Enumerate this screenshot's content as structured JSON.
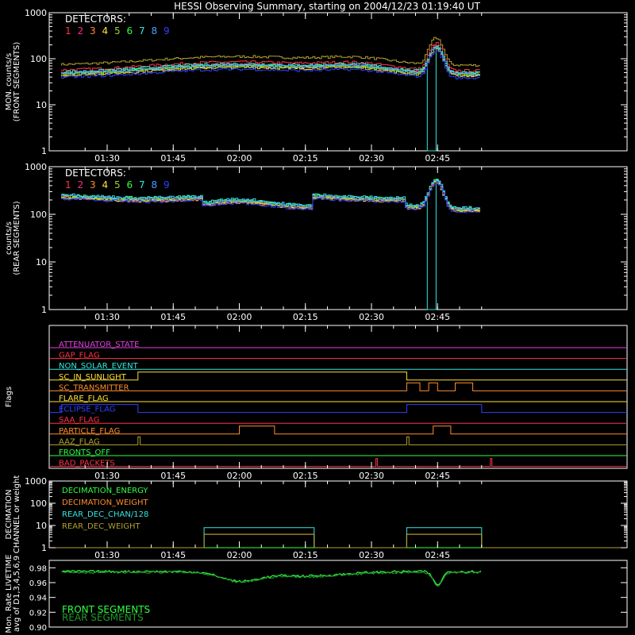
{
  "title": "HESSI Observing Summary, starting on 2004/12/23 01:19:40 UT",
  "time_ticks": [
    "01:30",
    "01:45",
    "02:00",
    "02:15",
    "02:30",
    "02:45"
  ],
  "detectors": {
    "heading": "DETECTORS:",
    "numbers": [
      "1",
      "2",
      "3",
      "4",
      "5",
      "6",
      "7",
      "8",
      "9"
    ],
    "colors": [
      "#ff3344",
      "#ff2a88",
      "#ff8c2a",
      "#ffe030",
      "#9ad030",
      "#30ff40",
      "#30e8e0",
      "#4aa0ff",
      "#3040ff"
    ],
    "extra_color": "#b0a030"
  },
  "chart_data": [
    {
      "type": "line",
      "ylabel": "MON. counts/s",
      "ylabel2": "(FRONT SEGMENTS)",
      "yscale": "log",
      "ylim": [
        1,
        1000
      ],
      "ytick_labels": [
        "1",
        "10",
        "100",
        "1000"
      ],
      "x_range": [
        "01:19:40",
        "02:55:00"
      ],
      "baseline_range": [
        30,
        100
      ],
      "flare_peak_time": "02:45",
      "flare_peak": 300,
      "dropout": [
        "02:43",
        "02:45"
      ]
    },
    {
      "type": "line",
      "ylabel": "counts/s",
      "ylabel2": "(REAR SEGMENTS)",
      "yscale": "log",
      "ylim": [
        1,
        1000
      ],
      "ytick_labels": [
        "1",
        "10",
        "100",
        "1000"
      ],
      "baseline_range": [
        130,
        320
      ],
      "flare_peak_time": "02:45",
      "flare_peak": 450,
      "dropout": [
        "02:43",
        "02:45"
      ]
    },
    {
      "type": "flags",
      "ylabel": "Flags",
      "flags": [
        {
          "name": "ATTENUATOR_STATE",
          "color": "#e040e0"
        },
        {
          "name": "GAP_FLAG",
          "color": "#ff3344"
        },
        {
          "name": "NON_SOLAR_EVENT",
          "color": "#30e8e0"
        },
        {
          "name": "SC_IN_SUNLIGHT",
          "color": "#ffe030",
          "on": [
            [
              "01:37",
              "02:38"
            ]
          ]
        },
        {
          "name": "SC_TRANSMITTER",
          "color": "#ff8c2a",
          "on": [
            [
              "02:38",
              "02:41"
            ],
            [
              "02:43",
              "02:45"
            ],
            [
              "02:49",
              "02:53"
            ]
          ]
        },
        {
          "name": "FLARE_FLAG",
          "color": "#ffe030"
        },
        {
          "name": "ECLIPSE_FLAG",
          "color": "#3040ff",
          "on": [
            [
              "01:19:40",
              "01:37"
            ],
            [
              "02:38",
              "02:55"
            ]
          ]
        },
        {
          "name": "SAA_FLAG",
          "color": "#ff3344"
        },
        {
          "name": "PARTICLE_FLAG",
          "color": "#ff8c2a",
          "on": [
            [
              "02:00",
              "02:08"
            ],
            [
              "02:44",
              "02:48"
            ]
          ]
        },
        {
          "name": "AAZ_FLAG",
          "color": "#b0a030",
          "on": [
            [
              "01:37",
              "01:37:30"
            ],
            [
              "02:38",
              "02:38:30"
            ]
          ]
        },
        {
          "name": "FRONTS_OFF",
          "color": "#30ff40"
        },
        {
          "name": "BAD_PACKETS",
          "color": "#ff3344",
          "on": [
            [
              "02:31",
              "02:31:20"
            ],
            [
              "02:57",
              "02:57:20"
            ]
          ]
        }
      ]
    },
    {
      "type": "line",
      "ylabel": "DECIMATION",
      "ylabel2": "CHANNEL or weight",
      "yscale": "log",
      "ylim": [
        1,
        1000
      ],
      "ytick_labels": [
        "1",
        "10",
        "100",
        "1000"
      ],
      "series": [
        {
          "name": "DECIMATION_ENERGY",
          "color": "#30ff40",
          "value": 1
        },
        {
          "name": "DECIMATION_WEIGHT",
          "color": "#ff8c2a",
          "value": 1,
          "on_value": 4
        },
        {
          "name": "REAR_DEC_CHAN/128",
          "color": "#30e8e0",
          "value": 1,
          "on_value": 8
        },
        {
          "name": "REAR_DEC_WEIGHT",
          "color": "#b0a030",
          "value": 1,
          "on_value": 4
        }
      ],
      "on_intervals": [
        [
          "01:52",
          "02:17"
        ],
        [
          "02:38",
          "02:55"
        ]
      ]
    },
    {
      "type": "line",
      "ylabel": "Mon. Rate LIVETIME",
      "ylabel2": "avg of D1,3,4,5,6,9",
      "ylim": [
        0.9,
        0.99
      ],
      "ytick_labels": [
        "0.90",
        "0.92",
        "0.94",
        "0.96",
        "0.98"
      ],
      "series": [
        {
          "name": "FRONT SEGMENTS",
          "color": "#30ff40"
        },
        {
          "name": "REAR SEGMENTS",
          "color": "#1e9a2a"
        }
      ],
      "typical_value": 0.975,
      "dip_values": [
        0.962,
        0.955
      ]
    }
  ]
}
